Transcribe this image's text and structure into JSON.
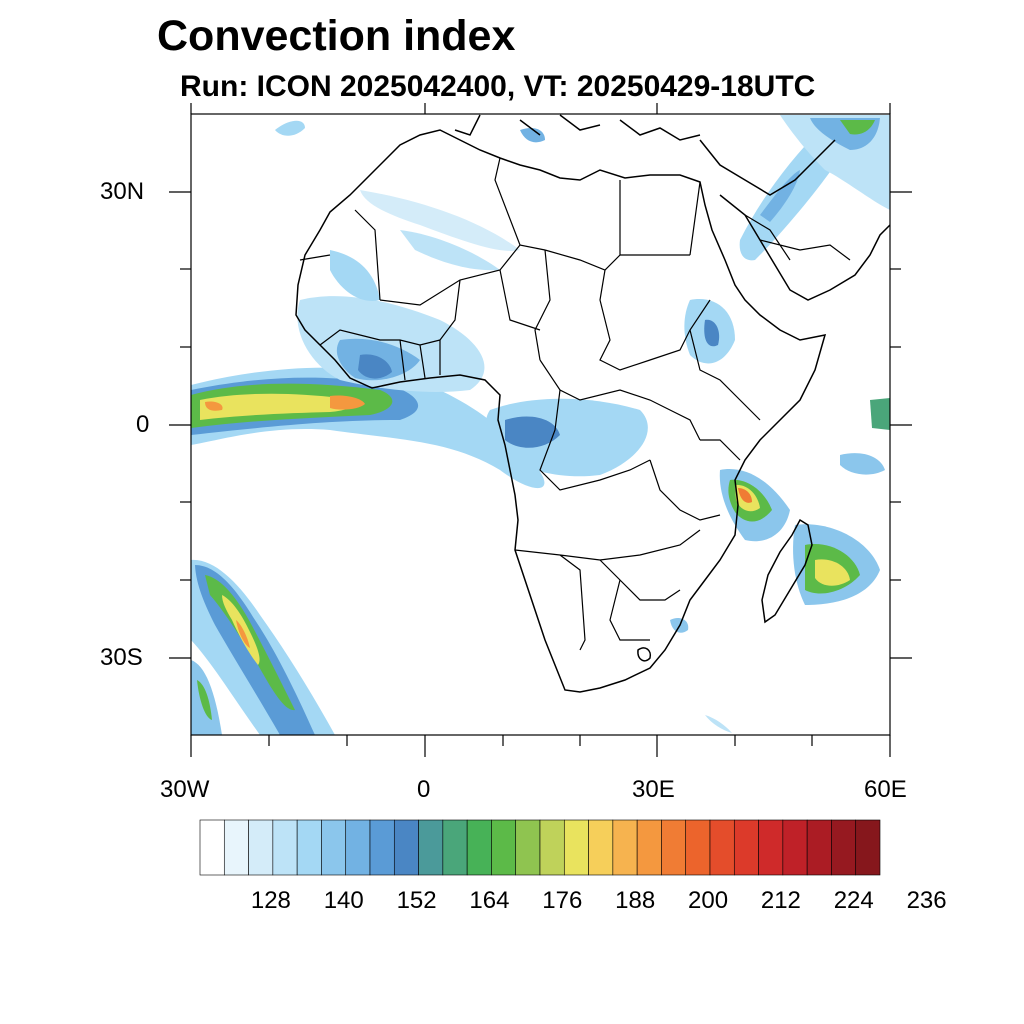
{
  "title": "Convection index",
  "subtitle": "Run: ICON 2025042400,  VT: 20250429-18UTC",
  "map": {
    "extent": {
      "lon_min": -30,
      "lon_max": 60,
      "lat_min": -40,
      "lat_max": 40
    },
    "lon_labels": [
      "30W",
      "0",
      "30E",
      "60E"
    ],
    "lat_labels": [
      "30N",
      "0",
      "30S"
    ]
  },
  "colorbar": {
    "labels": [
      "128",
      "140",
      "152",
      "164",
      "176",
      "188",
      "200",
      "212",
      "224",
      "236"
    ],
    "colors": [
      "#ffffff",
      "#e8f5fc",
      "#d4ecf9",
      "#bde3f7",
      "#a4d8f4",
      "#8bc6ec",
      "#72b2e3",
      "#5a9bd6",
      "#4a86c4",
      "#4b9a9a",
      "#4aa67a",
      "#47b257",
      "#5cba48",
      "#8fc450",
      "#bfd25a",
      "#e9e35e",
      "#f6cf5a",
      "#f6b34f",
      "#f4983f",
      "#f07c34",
      "#ec642c",
      "#e44d2b",
      "#dc3a2a",
      "#cf2a2a",
      "#bf2128",
      "#ab1c24",
      "#961920",
      "#86171c"
    ]
  }
}
